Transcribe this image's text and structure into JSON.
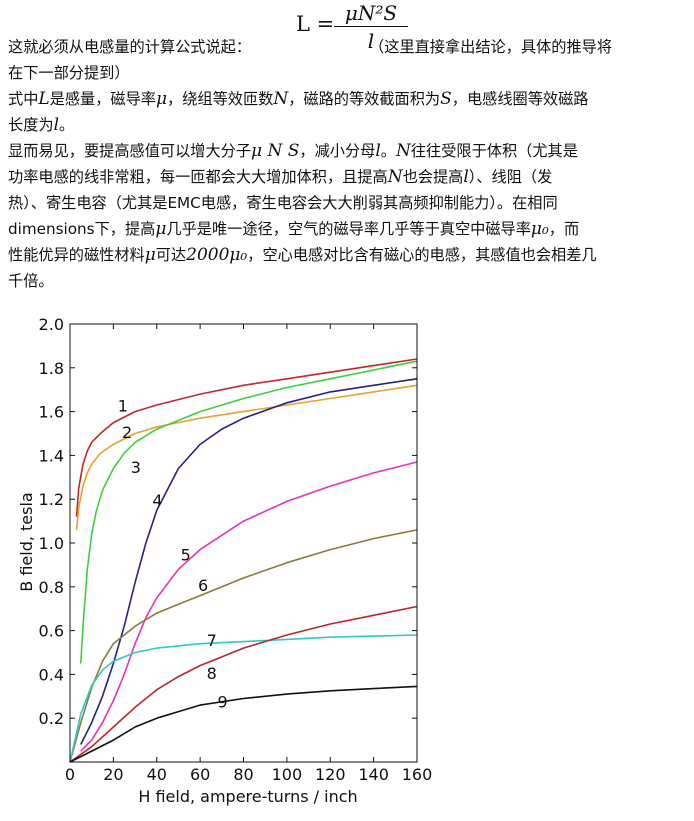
{
  "text": {
    "l1_pre": "这就必须从电感量的计算公式说起：",
    "formula_lhs": "L =",
    "formula_num": "μN²S",
    "formula_den": "l",
    "l1_post": "（这里直接拿出结论，具体的推导将",
    "l2": "在下一部分提到）",
    "l3_a": "式中",
    "l3_b": "L",
    "l3_c": "是感量，磁导率",
    "l3_d": "μ",
    "l3_e": "，绕组等效匝数",
    "l3_f": "N",
    "l3_g": "，磁路的等效截面积为",
    "l3_h": "S",
    "l3_i": "，电感线圈等效磁路",
    "l4_a": "长度为",
    "l4_b": "l",
    "l4_c": "。",
    "l5_a": "显而易见，要提高感值可以增大分子",
    "l5_b": "μ N S",
    "l5_c": "，减小分母",
    "l5_d": "l",
    "l5_e": "。",
    "l5_f": "N",
    "l5_g": "往往受限于体积（尤其是",
    "l6_a": "功率电感的线非常粗，每一匝都会大大增加体积，且提高",
    "l6_b": "N",
    "l6_c": "也会提高",
    "l6_d": "l",
    "l6_e": "）、线阻（发",
    "l7": "热）、寄生电容（尤其是EMC电感，寄生电容会大大削弱其高频抑制能力）。在相同",
    "l8_a": "dimensions下，提高",
    "l8_b": "μ",
    "l8_c": "几乎是唯一途径，空气的磁导率几乎等于真空中磁导率",
    "l8_d": "μ₀",
    "l8_e": "，而",
    "l9_a": "性能优异的磁性材料",
    "l9_b": "μ",
    "l9_c": "可达",
    "l9_d": "2000μ₀",
    "l9_e": "，空心电感对比含有磁心的电感，其感值也会相差几",
    "l10": "千倍。"
  },
  "chart_data": {
    "type": "line",
    "xlabel": "H field, ampere-turns / inch",
    "ylabel": "B field, tesla",
    "xlim": [
      0,
      160
    ],
    "ylim": [
      0,
      2.0
    ],
    "xticks": [
      0,
      20,
      40,
      60,
      80,
      100,
      120,
      140,
      160
    ],
    "yticks": [
      0.2,
      0.4,
      0.6,
      0.8,
      1.0,
      1.2,
      1.4,
      1.6,
      1.8,
      2.0
    ],
    "grid": false,
    "series": [
      {
        "name": "1",
        "color": "#c0282a",
        "label_at": [
          22,
          1.6
        ],
        "x": [
          3,
          4,
          6,
          8,
          10,
          14,
          20,
          30,
          40,
          60,
          80,
          100,
          120,
          140,
          160
        ],
        "y": [
          1.12,
          1.25,
          1.36,
          1.42,
          1.46,
          1.5,
          1.55,
          1.6,
          1.63,
          1.68,
          1.72,
          1.75,
          1.78,
          1.81,
          1.84
        ]
      },
      {
        "name": "2",
        "color": "#e8a030",
        "label_at": [
          24,
          1.48
        ],
        "x": [
          3,
          4,
          6,
          8,
          10,
          14,
          20,
          30,
          40,
          60,
          80,
          100,
          120,
          140,
          160
        ],
        "y": [
          1.06,
          1.16,
          1.26,
          1.32,
          1.36,
          1.41,
          1.45,
          1.5,
          1.53,
          1.57,
          1.6,
          1.63,
          1.66,
          1.69,
          1.72
        ]
      },
      {
        "name": "3",
        "color": "#3ecf3e",
        "label_at": [
          28,
          1.32
        ],
        "x": [
          5,
          6,
          8,
          10,
          12,
          15,
          20,
          25,
          30,
          40,
          50,
          60,
          80,
          100,
          120,
          140,
          160
        ],
        "y": [
          0.45,
          0.62,
          0.88,
          1.04,
          1.14,
          1.24,
          1.34,
          1.41,
          1.46,
          1.52,
          1.56,
          1.6,
          1.66,
          1.71,
          1.75,
          1.79,
          1.83
        ]
      },
      {
        "name": "4",
        "color": "#22228a",
        "label_at": [
          38,
          1.17
        ],
        "x": [
          5,
          10,
          15,
          20,
          25,
          30,
          35,
          40,
          50,
          60,
          70,
          80,
          100,
          120,
          140,
          160
        ],
        "y": [
          0.08,
          0.18,
          0.3,
          0.45,
          0.62,
          0.82,
          1.0,
          1.15,
          1.34,
          1.45,
          1.52,
          1.57,
          1.64,
          1.69,
          1.72,
          1.75
        ]
      },
      {
        "name": "5",
        "color": "#e832b8",
        "label_at": [
          51,
          0.92
        ],
        "x": [
          5,
          10,
          15,
          20,
          25,
          30,
          35,
          40,
          50,
          60,
          80,
          100,
          120,
          140,
          160
        ],
        "y": [
          0.05,
          0.1,
          0.18,
          0.28,
          0.4,
          0.54,
          0.66,
          0.75,
          0.88,
          0.97,
          1.1,
          1.19,
          1.26,
          1.32,
          1.37
        ]
      },
      {
        "name": "6",
        "color": "#8b7a3a",
        "label_at": [
          59,
          0.78
        ],
        "x": [
          0,
          5,
          10,
          15,
          20,
          30,
          40,
          50,
          60,
          80,
          100,
          120,
          140,
          160
        ],
        "y": [
          0.0,
          0.18,
          0.34,
          0.46,
          0.54,
          0.62,
          0.68,
          0.72,
          0.76,
          0.84,
          0.91,
          0.97,
          1.02,
          1.06
        ]
      },
      {
        "name": "7",
        "color": "#30c8c8",
        "label_at": [
          63,
          0.53
        ],
        "x": [
          0,
          5,
          10,
          15,
          20,
          30,
          40,
          50,
          60,
          80,
          100,
          120,
          140,
          160
        ],
        "y": [
          0.0,
          0.22,
          0.35,
          0.42,
          0.46,
          0.5,
          0.52,
          0.53,
          0.54,
          0.55,
          0.56,
          0.57,
          0.575,
          0.58
        ]
      },
      {
        "name": "8",
        "color": "#b82828",
        "label_at": [
          63,
          0.38
        ],
        "x": [
          0,
          10,
          20,
          30,
          40,
          50,
          60,
          80,
          100,
          120,
          140,
          160
        ],
        "y": [
          0.0,
          0.07,
          0.16,
          0.25,
          0.33,
          0.39,
          0.44,
          0.52,
          0.58,
          0.63,
          0.67,
          0.71
        ]
      },
      {
        "name": "9",
        "color": "#111111",
        "label_at": [
          68,
          0.25
        ],
        "x": [
          0,
          10,
          20,
          30,
          40,
          50,
          60,
          80,
          100,
          120,
          140,
          160
        ],
        "y": [
          0.0,
          0.05,
          0.1,
          0.16,
          0.2,
          0.23,
          0.26,
          0.29,
          0.31,
          0.325,
          0.335,
          0.345
        ]
      }
    ]
  }
}
